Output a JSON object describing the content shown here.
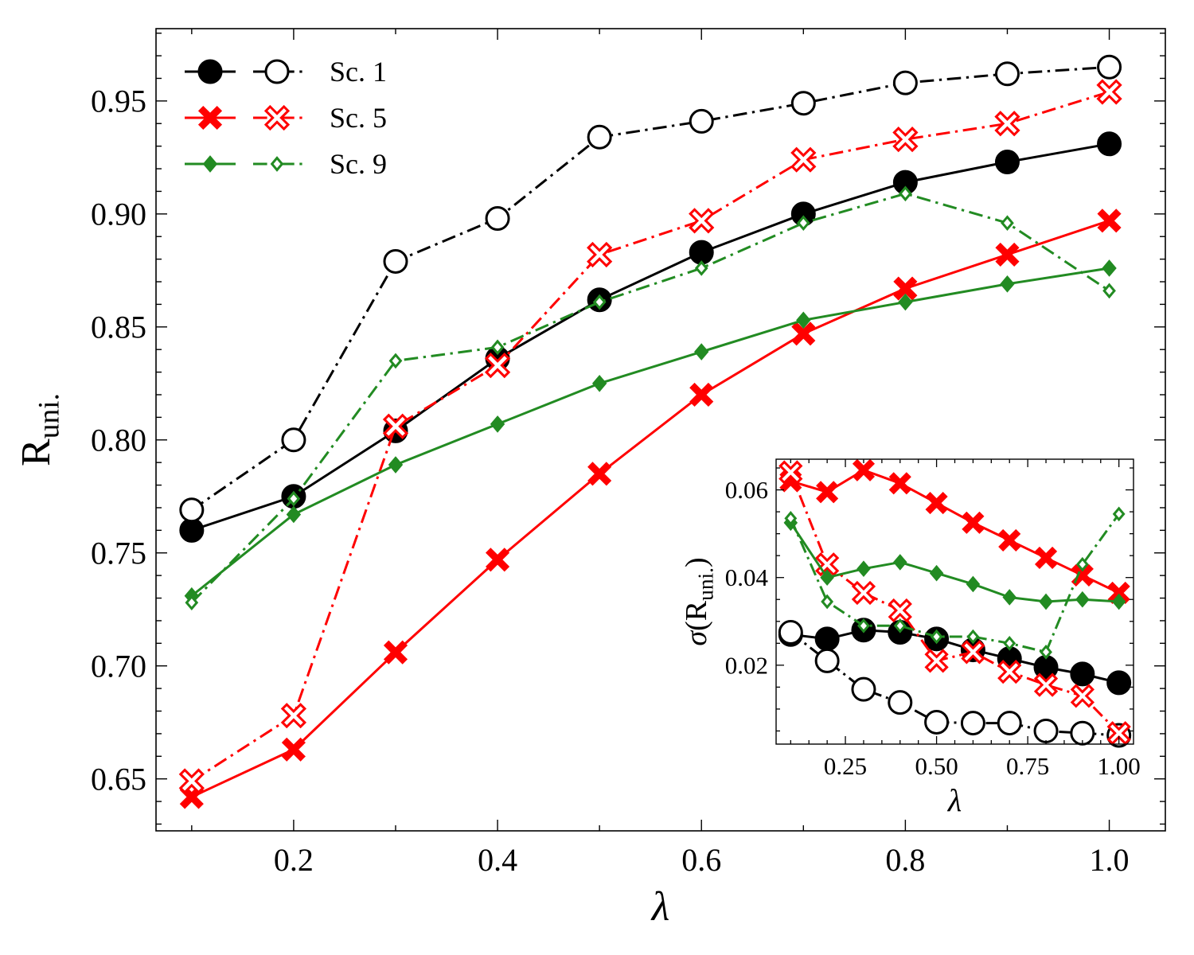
{
  "chart_data": [
    {
      "type": "line",
      "id": "main",
      "xlabel": "λ",
      "ylabel": "R",
      "ylabel_sub": "uni.",
      "xlim": [
        0.065,
        1.055
      ],
      "ylim": [
        0.627,
        0.982
      ],
      "xticks": [
        0.2,
        0.4,
        0.6,
        0.8,
        1.0
      ],
      "xtick_labels": [
        "0.2",
        "0.4",
        "0.6",
        "0.8",
        "1.0"
      ],
      "yticks": [
        0.65,
        0.7,
        0.75,
        0.8,
        0.85,
        0.9,
        0.95
      ],
      "ytick_labels": [
        "0.65",
        "0.70",
        "0.75",
        "0.80",
        "0.85",
        "0.90",
        "0.95"
      ],
      "legend": {
        "position": "top-left",
        "entries": [
          {
            "label": "Sc. 1",
            "color": "#000000",
            "marker": "circle"
          },
          {
            "label": "Sc. 5",
            "color": "#ff0000",
            "marker": "x"
          },
          {
            "label": "Sc. 9",
            "color": "#228b22",
            "marker": "diamond"
          }
        ]
      },
      "x": [
        0.1,
        0.2,
        0.3,
        0.4,
        0.5,
        0.6,
        0.7,
        0.8,
        0.9,
        1.0
      ],
      "series": [
        {
          "name": "Sc. 1 (filled)",
          "color": "#000000",
          "marker": "circle",
          "filled": true,
          "line": "solid",
          "values": [
            0.76,
            0.775,
            0.804,
            0.836,
            0.862,
            0.883,
            0.9,
            0.914,
            0.923,
            0.931
          ]
        },
        {
          "name": "Sc. 1 (open)",
          "color": "#000000",
          "marker": "circle",
          "filled": false,
          "line": "dashdot",
          "values": [
            0.769,
            0.8,
            0.879,
            0.898,
            0.934,
            0.941,
            0.949,
            0.958,
            0.962,
            0.965
          ]
        },
        {
          "name": "Sc. 5 (filled)",
          "color": "#ff0000",
          "marker": "x",
          "filled": true,
          "line": "solid",
          "values": [
            0.642,
            0.663,
            0.706,
            0.747,
            0.785,
            0.82,
            0.847,
            0.867,
            0.882,
            0.897
          ]
        },
        {
          "name": "Sc. 5 (open)",
          "color": "#ff0000",
          "marker": "x",
          "filled": false,
          "line": "dashdot",
          "values": [
            0.649,
            0.678,
            0.806,
            0.833,
            0.882,
            0.897,
            0.924,
            0.933,
            0.94,
            0.954
          ]
        },
        {
          "name": "Sc. 9 (filled)",
          "color": "#228b22",
          "marker": "diamond",
          "filled": true,
          "line": "solid",
          "values": [
            0.731,
            0.767,
            0.789,
            0.807,
            0.825,
            0.839,
            0.853,
            0.861,
            0.869,
            0.876
          ]
        },
        {
          "name": "Sc. 9 (open)",
          "color": "#228b22",
          "marker": "diamond",
          "filled": false,
          "line": "dashdot",
          "values": [
            0.728,
            0.774,
            0.835,
            0.841,
            0.861,
            0.876,
            0.896,
            0.909,
            0.896,
            0.866
          ]
        }
      ]
    },
    {
      "type": "line",
      "id": "inset",
      "xlabel": "λ",
      "ylabel": "σ(R",
      "ylabel_sub": "uni.",
      "ylabel_close": ")",
      "xlim": [
        0.06,
        1.04
      ],
      "ylim": [
        0.002,
        0.067
      ],
      "xticks": [
        0.25,
        0.5,
        0.75,
        1.0
      ],
      "xtick_labels": [
        "0.25",
        "0.50",
        "0.75",
        "1.00"
      ],
      "yticks": [
        0.02,
        0.04,
        0.06
      ],
      "ytick_labels": [
        "0.02",
        "0.04",
        "0.06"
      ],
      "x": [
        0.1,
        0.2,
        0.3,
        0.4,
        0.5,
        0.6,
        0.7,
        0.8,
        0.9,
        1.0
      ],
      "series": [
        {
          "name": "Sc. 1 (filled)",
          "color": "#000000",
          "marker": "circle",
          "filled": true,
          "line": "solid",
          "values": [
            0.027,
            0.026,
            0.028,
            0.0275,
            0.026,
            0.0235,
            0.0215,
            0.0195,
            0.018,
            0.016
          ]
        },
        {
          "name": "Sc. 1 (open)",
          "color": "#000000",
          "marker": "circle",
          "filled": false,
          "line": "dashdot",
          "values": [
            0.0275,
            0.021,
            0.0145,
            0.0115,
            0.007,
            0.0068,
            0.0068,
            0.005,
            0.0045,
            0.004
          ]
        },
        {
          "name": "Sc. 5 (filled)",
          "color": "#ff0000",
          "marker": "x",
          "filled": true,
          "line": "solid",
          "values": [
            0.062,
            0.0595,
            0.0645,
            0.0615,
            0.057,
            0.0525,
            0.0485,
            0.0445,
            0.0405,
            0.0365
          ]
        },
        {
          "name": "Sc. 5 (open)",
          "color": "#ff0000",
          "marker": "x",
          "filled": false,
          "line": "dashdot",
          "values": [
            0.064,
            0.043,
            0.0365,
            0.0325,
            0.021,
            0.023,
            0.0185,
            0.0155,
            0.013,
            0.0045
          ]
        },
        {
          "name": "Sc. 9 (filled)",
          "color": "#228b22",
          "marker": "diamond",
          "filled": true,
          "line": "solid",
          "values": [
            0.0525,
            0.04,
            0.042,
            0.0435,
            0.041,
            0.0385,
            0.0355,
            0.0345,
            0.035,
            0.0345
          ]
        },
        {
          "name": "Sc. 9 (open)",
          "color": "#228b22",
          "marker": "diamond",
          "filled": false,
          "line": "dashdot",
          "values": [
            0.0535,
            0.0345,
            0.029,
            0.029,
            0.0265,
            0.0265,
            0.025,
            0.023,
            0.043,
            0.0545
          ]
        }
      ]
    }
  ]
}
